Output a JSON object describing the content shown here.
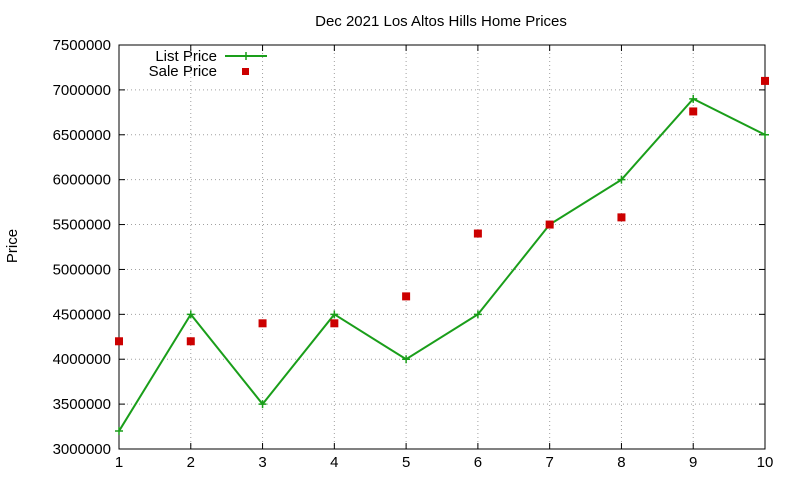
{
  "chart_data": {
    "type": "line",
    "title": "Dec 2021 Los Altos Hills Home Prices",
    "xlabel": "",
    "ylabel": "Price",
    "x": [
      1,
      2,
      3,
      4,
      5,
      6,
      7,
      8,
      9,
      10
    ],
    "xlim": [
      1,
      10
    ],
    "ylim": [
      3000000,
      7500000
    ],
    "xticks": [
      "1",
      "2",
      "3",
      "4",
      "5",
      "6",
      "7",
      "8",
      "9",
      "10"
    ],
    "yticks": [
      "3000000",
      "3500000",
      "4000000",
      "4500000",
      "5000000",
      "5500000",
      "6000000",
      "6500000",
      "7000000",
      "7500000"
    ],
    "grid": true,
    "legend_position": "top-left",
    "series": [
      {
        "name": "List Price",
        "style": "lines+plus-points",
        "color": "#1a9e1a",
        "values": [
          3200000,
          4500000,
          3500000,
          4500000,
          4000000,
          4500000,
          5500000,
          6000000,
          6900000,
          6500000
        ]
      },
      {
        "name": "Sale Price",
        "style": "square-points",
        "color": "#cc0000",
        "values": [
          4200000,
          4200000,
          4400000,
          4400000,
          4700000,
          5400000,
          5500000,
          5580000,
          6760000,
          7100000
        ]
      }
    ]
  }
}
